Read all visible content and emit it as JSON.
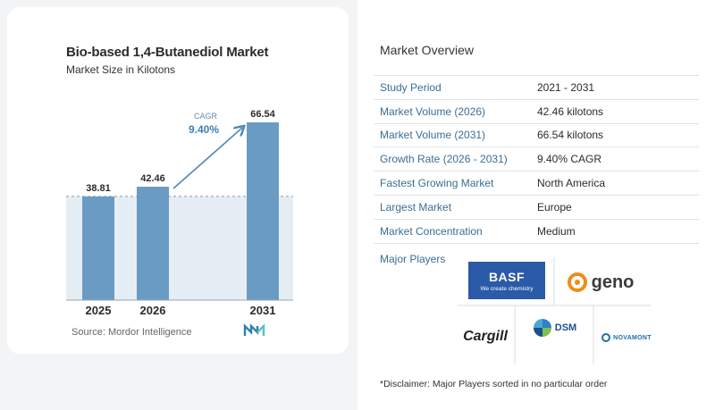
{
  "chart_data": {
    "type": "bar",
    "title": "Bio-based 1,4-Butanediol Market",
    "subtitle": "Market Size in Kilotons",
    "categories": [
      "2025",
      "2026",
      "2031"
    ],
    "values": [
      38.81,
      42.46,
      66.54
    ],
    "value_labels": [
      "38.81",
      "42.46",
      "66.54"
    ],
    "cagr_label": "CAGR",
    "cagr_value": "9.40%",
    "bar_color": "#6a9cc3",
    "source": "Source:  Mordor Intelligence"
  },
  "overview": {
    "title": "Market Overview",
    "rows": [
      {
        "key": "Study Period",
        "value": "2021 - 2031"
      },
      {
        "key": "Market Volume (2026)",
        "value": "42.46 kilotons"
      },
      {
        "key": "Market Volume (2031)",
        "value": "66.54 kilotons"
      },
      {
        "key": "Growth Rate (2026 - 2031)",
        "value": "9.40% CAGR"
      },
      {
        "key": "Fastest Growing Market",
        "value": "North America"
      },
      {
        "key": "Largest Market",
        "value": "Europe"
      },
      {
        "key": "Market Concentration",
        "value": "Medium"
      }
    ],
    "players_label": "Major Players",
    "players": {
      "basf": "BASF",
      "basf_tagline": "We create chemistry",
      "geno": "geno",
      "cargill": "Cargill",
      "dsm": "DSM",
      "novamont": "NOVAMONT"
    },
    "disclaimer": "*Disclaimer: Major Players sorted in no particular order"
  }
}
